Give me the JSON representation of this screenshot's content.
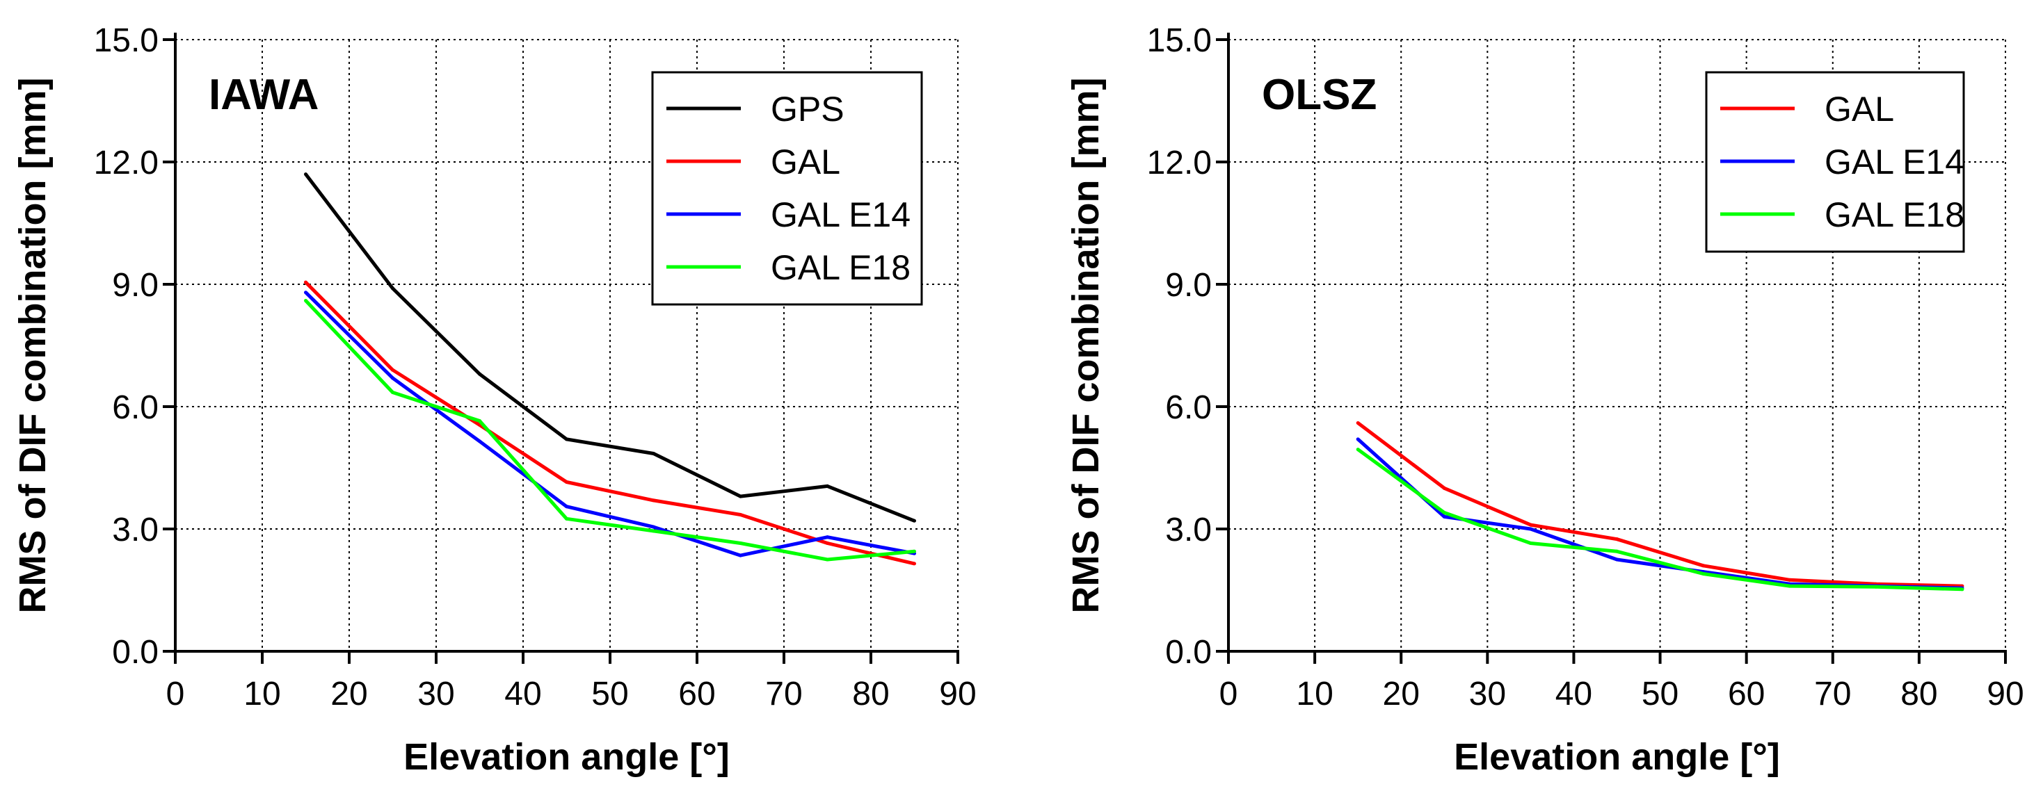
{
  "chart_data": [
    {
      "type": "line",
      "title": "IAWA",
      "xlabel": "Elevation angle [°]",
      "ylabel": "RMS of DIF combination [mm]",
      "xlim": [
        0,
        90
      ],
      "ylim": [
        0,
        15
      ],
      "xticks": [
        "0",
        "10",
        "20",
        "30",
        "40",
        "50",
        "60",
        "70",
        "80",
        "90"
      ],
      "yticks": [
        "0.0",
        "3.0",
        "6.0",
        "9.0",
        "12.0",
        "15.0"
      ],
      "grid": true,
      "legend_position": "top-right",
      "x": [
        15,
        25,
        35,
        45,
        55,
        65,
        75,
        85
      ],
      "series": [
        {
          "name": "GPS",
          "color": "#000000",
          "values": [
            11.7,
            8.9,
            6.8,
            5.2,
            4.85,
            3.8,
            4.05,
            3.2
          ]
        },
        {
          "name": "GAL",
          "color": "#ff0000",
          "values": [
            9.05,
            6.9,
            5.55,
            4.15,
            3.7,
            3.35,
            2.65,
            2.15
          ]
        },
        {
          "name": "GAL E14",
          "color": "#0000ff",
          "values": [
            8.8,
            6.7,
            5.15,
            3.55,
            3.05,
            2.35,
            2.8,
            2.4
          ]
        },
        {
          "name": "GAL E18",
          "color": "#00ff00",
          "values": [
            8.6,
            6.35,
            5.65,
            3.25,
            2.95,
            2.65,
            2.25,
            2.45
          ]
        }
      ]
    },
    {
      "type": "line",
      "title": "OLSZ",
      "xlabel": "Elevation angle [°]",
      "ylabel": "RMS of DIF combination [mm]",
      "xlim": [
        0,
        90
      ],
      "ylim": [
        0,
        15
      ],
      "xticks": [
        "0",
        "10",
        "20",
        "30",
        "40",
        "50",
        "60",
        "70",
        "80",
        "90"
      ],
      "yticks": [
        "0.0",
        "3.0",
        "6.0",
        "9.0",
        "12.0",
        "15.0"
      ],
      "grid": true,
      "legend_position": "top-right",
      "x": [
        15,
        25,
        35,
        45,
        55,
        65,
        75,
        85
      ],
      "series": [
        {
          "name": "GAL",
          "color": "#ff0000",
          "values": [
            5.6,
            4.0,
            3.1,
            2.75,
            2.1,
            1.75,
            1.65,
            1.6
          ]
        },
        {
          "name": "GAL E14",
          "color": "#0000ff",
          "values": [
            5.2,
            3.3,
            3.0,
            2.25,
            1.95,
            1.65,
            1.6,
            1.55
          ]
        },
        {
          "name": "GAL E18",
          "color": "#00ff00",
          "values": [
            4.95,
            3.4,
            2.65,
            2.45,
            1.9,
            1.6,
            1.58,
            1.52
          ]
        }
      ]
    }
  ]
}
